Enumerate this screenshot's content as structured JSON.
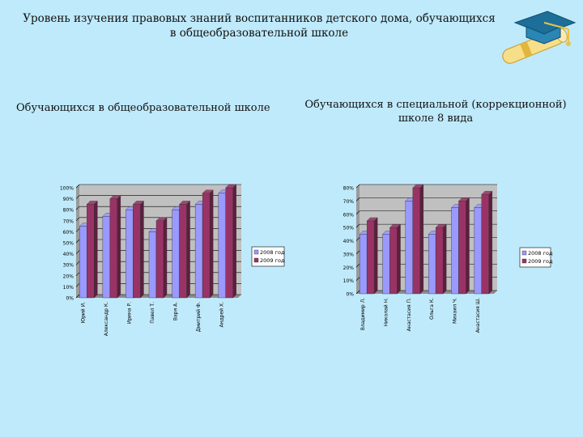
{
  "slide": {
    "title_line1": "Уровень изучения правовых знаний воспитанников детского дома, обучающихся",
    "title_line2": "в общеобразовательной школе",
    "subtitle_left": "Обучающихся  в общеобразовательной школе",
    "subtitle_right_line1": "Обучающихся в специальной (коррекционной)",
    "subtitle_right_line2": "школе 8 вида"
  },
  "logo": {
    "icon": "graduation-cap-diploma-icon"
  },
  "colors": {
    "background": "#bfeafb",
    "series_2008": "#9999ff",
    "series_2009": "#993366"
  },
  "chart_data": [
    {
      "type": "bar",
      "categories": [
        "Юрий И.",
        "Александр К.",
        "Ирина Р.",
        "Павел Т.",
        "Варя А.",
        "Дмитрий Ф.",
        "Андрей Х."
      ],
      "series": [
        {
          "name": "2008 год",
          "values": [
            65,
            74,
            80,
            60,
            80,
            85,
            95
          ]
        },
        {
          "name": "2009 год",
          "values": [
            85,
            90,
            85,
            70,
            85,
            95,
            100
          ]
        }
      ],
      "yticks": [
        "0%",
        "10%",
        "20%",
        "30%",
        "40%",
        "50%",
        "60%",
        "70%",
        "80%",
        "90%",
        "100%"
      ],
      "ylim": [
        0,
        100
      ],
      "legend": "right",
      "grid": true
    },
    {
      "type": "bar",
      "categories": [
        "Владимир Л.",
        "Николай Н.",
        "Анастасия П.",
        "Ольга К.",
        "Михаил Ч.",
        "Анастасия Ш."
      ],
      "series": [
        {
          "name": "2008 год",
          "values": [
            45,
            45,
            70,
            45,
            65,
            65
          ]
        },
        {
          "name": "2009 год",
          "values": [
            55,
            50,
            80,
            50,
            70,
            75
          ]
        }
      ],
      "yticks": [
        "0%",
        "10%",
        "20%",
        "30%",
        "40%",
        "50%",
        "60%",
        "70%",
        "80%"
      ],
      "ylim": [
        0,
        80
      ],
      "legend": "right",
      "grid": true
    }
  ]
}
